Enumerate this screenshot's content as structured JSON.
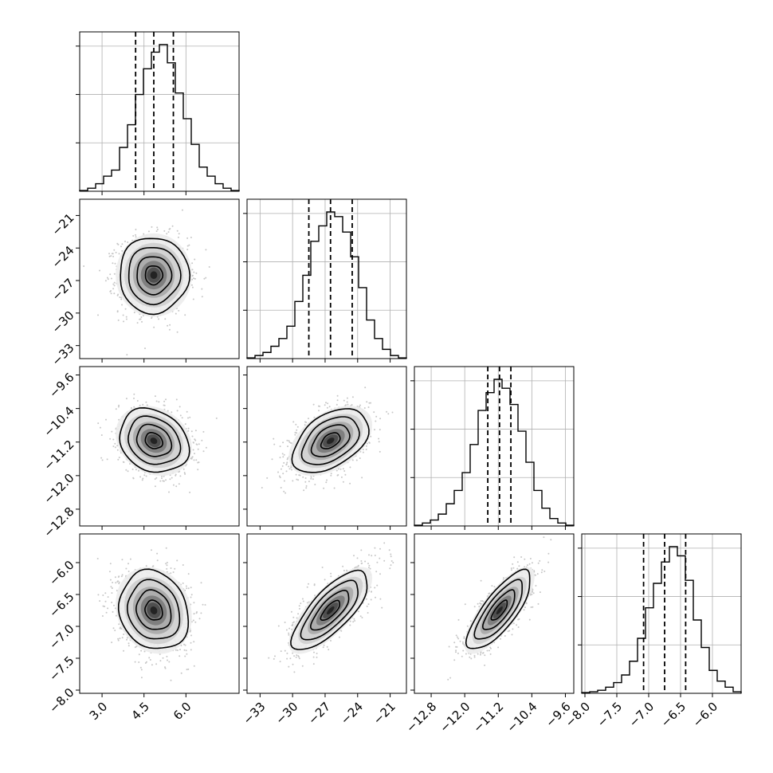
{
  "chart_data": {
    "type": "corner",
    "n_params": 4,
    "params": [
      {
        "index": 0,
        "range": [
          2.2,
          7.9
        ],
        "ticks": [
          3.0,
          4.5,
          6.0
        ],
        "tick_labels": [
          "3.0",
          "4.5",
          "6.0"
        ],
        "median": 4.85,
        "q16": 4.2,
        "q84": 5.55
      },
      {
        "index": 1,
        "range": [
          -34.2,
          -19.5
        ],
        "ticks": [
          -33,
          -30,
          -27,
          -24,
          -21
        ],
        "tick_labels": [
          "−33",
          "−30",
          "−27",
          "−24",
          "−21"
        ],
        "median": -26.5,
        "q16": -28.5,
        "q84": -24.5
      },
      {
        "index": 2,
        "range": [
          -13.2,
          -9.4
        ],
        "ticks": [
          -12.8,
          -12.0,
          -11.2,
          -10.4,
          -9.6
        ],
        "tick_labels": [
          "−12.8",
          "−12.0",
          "−11.2",
          "−10.4",
          "−9.6"
        ],
        "median": -11.17,
        "q16": -11.45,
        "q84": -10.9
      },
      {
        "index": 3,
        "range": [
          -8.05,
          -5.55
        ],
        "ticks": [
          -8.0,
          -7.5,
          -7.0,
          -6.5,
          -6.0
        ],
        "tick_labels": [
          "−8.0",
          "−7.5",
          "−7.0",
          "−6.5",
          "−6.0"
        ],
        "median": -6.75,
        "q16": -7.08,
        "q84": -6.42
      }
    ],
    "histograms": [
      {
        "param": 0,
        "bin_edges": [
          2.2,
          2.485,
          2.77,
          3.055,
          3.34,
          3.625,
          3.91,
          4.195,
          4.48,
          4.765,
          5.05,
          5.335,
          5.62,
          5.905,
          6.19,
          6.475,
          6.76,
          7.045,
          7.33,
          7.615,
          7.9
        ],
        "counts": [
          0.005,
          0.02,
          0.05,
          0.1,
          0.14,
          0.29,
          0.44,
          0.64,
          0.81,
          0.92,
          0.97,
          0.85,
          0.65,
          0.48,
          0.31,
          0.16,
          0.1,
          0.05,
          0.02,
          0.005
        ]
      },
      {
        "param": 1,
        "bin_edges": [
          -34.2,
          -33.465,
          -32.73,
          -31.995,
          -31.26,
          -30.525,
          -29.79,
          -29.055,
          -28.32,
          -27.585,
          -26.85,
          -26.115,
          -25.38,
          -24.645,
          -23.91,
          -23.175,
          -22.44,
          -21.705,
          -20.97,
          -20.235,
          -19.5
        ],
        "counts": [
          0.005,
          0.02,
          0.04,
          0.08,
          0.13,
          0.21,
          0.37,
          0.54,
          0.76,
          0.86,
          0.95,
          0.92,
          0.82,
          0.66,
          0.46,
          0.25,
          0.13,
          0.06,
          0.02,
          0.005
        ]
      },
      {
        "param": 2,
        "bin_edges": [
          -13.2,
          -13.01,
          -12.82,
          -12.63,
          -12.44,
          -12.25,
          -12.06,
          -11.87,
          -11.68,
          -11.49,
          -11.3,
          -11.11,
          -10.92,
          -10.73,
          -10.54,
          -10.35,
          -10.16,
          -9.97,
          -9.78,
          -9.59,
          -9.4
        ],
        "counts": [
          0.005,
          0.02,
          0.04,
          0.08,
          0.15,
          0.24,
          0.36,
          0.55,
          0.78,
          0.9,
          0.99,
          0.93,
          0.82,
          0.64,
          0.43,
          0.24,
          0.12,
          0.05,
          0.02,
          0.005
        ]
      },
      {
        "param": 3,
        "bin_edges": [
          -8.05,
          -7.925,
          -7.8,
          -7.675,
          -7.55,
          -7.425,
          -7.3,
          -7.175,
          -7.05,
          -6.925,
          -6.8,
          -6.675,
          -6.55,
          -6.425,
          -6.3,
          -6.175,
          -6.05,
          -5.925,
          -5.8,
          -5.675,
          -5.55
        ],
        "counts": [
          0.005,
          0.01,
          0.02,
          0.04,
          0.07,
          0.12,
          0.21,
          0.36,
          0.56,
          0.72,
          0.86,
          0.96,
          0.9,
          0.74,
          0.48,
          0.3,
          0.15,
          0.08,
          0.04,
          0.01
        ]
      }
    ],
    "density_panels": [
      {
        "x_param": 0,
        "y_param": 1,
        "mean": [
          4.85,
          -26.5
        ],
        "std": [
          0.62,
          1.75
        ],
        "corr": 0.0
      },
      {
        "x_param": 0,
        "y_param": 2,
        "mean": [
          4.85,
          -11.17
        ],
        "std": [
          0.62,
          0.38
        ],
        "corr": -0.2
      },
      {
        "x_param": 1,
        "y_param": 2,
        "mean": [
          -26.5,
          -11.17
        ],
        "std": [
          1.75,
          0.38
        ],
        "corr": 0.45
      },
      {
        "x_param": 0,
        "y_param": 3,
        "mean": [
          4.85,
          -6.75
        ],
        "std": [
          0.62,
          0.31
        ],
        "corr": -0.15
      },
      {
        "x_param": 1,
        "y_param": 3,
        "mean": [
          -26.5,
          -6.75
        ],
        "std": [
          1.75,
          0.31
        ],
        "corr": 0.75
      },
      {
        "x_param": 2,
        "y_param": 3,
        "mean": [
          -11.17,
          -6.75
        ],
        "std": [
          0.38,
          0.31
        ],
        "corr": 0.78
      }
    ],
    "contour_levels_sigma": [
      0.5,
      1.0,
      1.5,
      2.0
    ],
    "quantile_lines": "dashed",
    "grid": true,
    "title": "",
    "xlabel": "",
    "ylabel": ""
  }
}
